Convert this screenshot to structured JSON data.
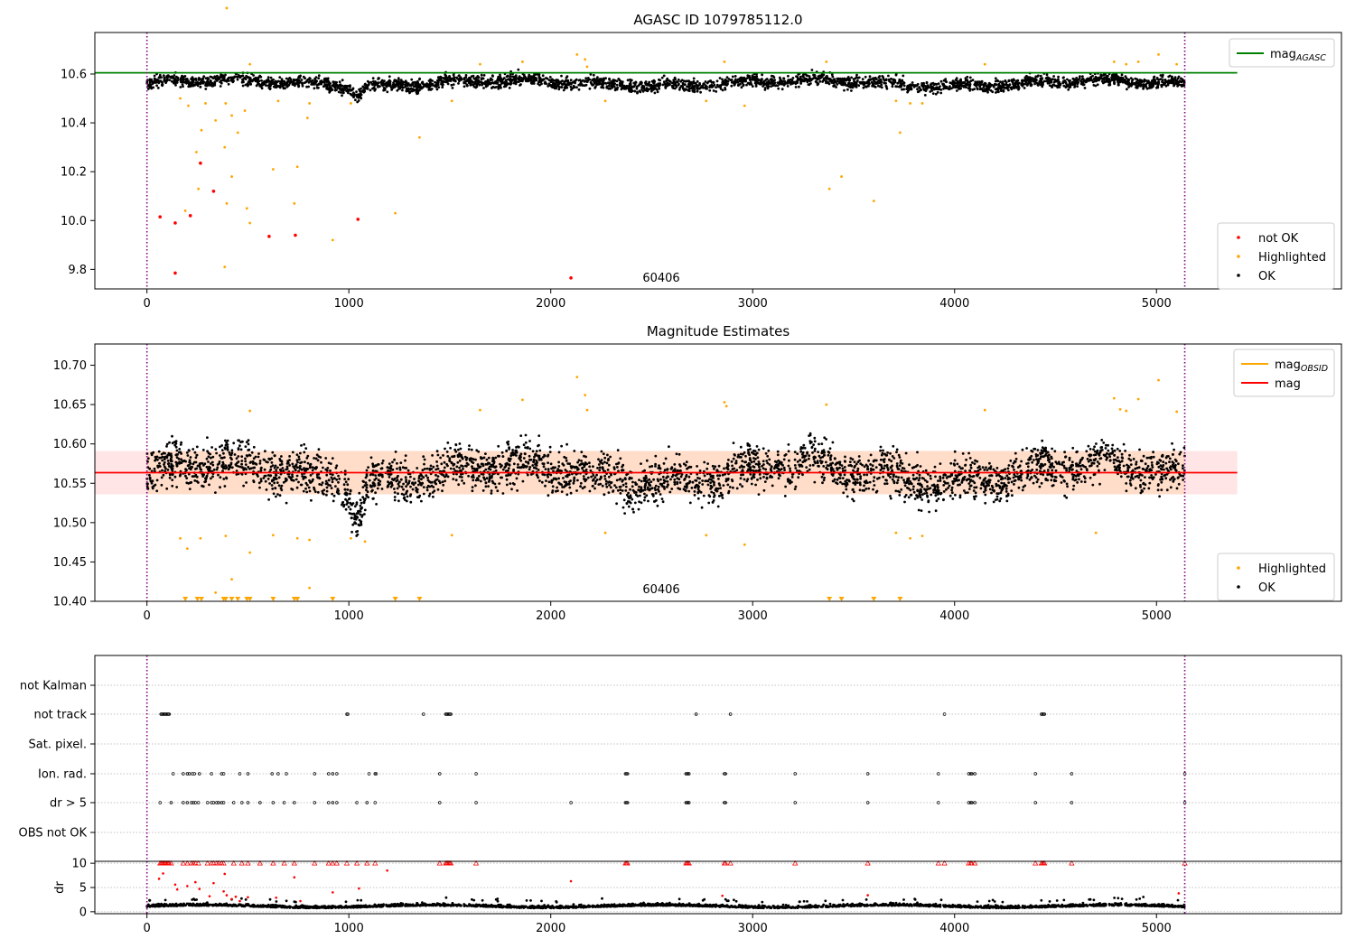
{
  "chart_data": [
    {
      "type": "scatter",
      "title": "AGASC ID 1079785112.0",
      "xlim": [
        -258,
        5916
      ],
      "ylim": [
        9.72,
        10.77
      ],
      "x_ticks": [
        0,
        1000,
        2000,
        3000,
        4000,
        5000
      ],
      "y_ticks": [
        9.8,
        10.0,
        10.2,
        10.4,
        10.6
      ],
      "y_tick_labels": [
        "9.8",
        "10.0",
        "10.2",
        "10.4",
        "10.6"
      ],
      "grid": false,
      "legend_position": "top-right",
      "legend": [
        {
          "label": "mag",
          "sub": "AGASC",
          "color": "#008000",
          "kind": "line"
        }
      ],
      "legend2_position": "bottom-right",
      "legend2": [
        {
          "label": "not OK",
          "color": "#ff0000",
          "kind": "dot"
        },
        {
          "label": "Highlighted",
          "color": "#ffa500",
          "kind": "dot"
        },
        {
          "label": "OK",
          "color": "#000000",
          "kind": "dot"
        }
      ],
      "annotation": {
        "text": "60406",
        "x": 2570,
        "y": 9.755
      },
      "vlines": [
        0,
        5140
      ],
      "hline": {
        "y": 10.605,
        "x_end": 5400,
        "color": "#008000"
      },
      "ok_band": {
        "x_range": [
          0,
          5140
        ],
        "center": 10.563,
        "half_width": 0.045,
        "dip_x": 1040,
        "dip_depth": 0.04
      },
      "series": [
        {
          "name": "not OK",
          "color": "#ff0000",
          "points": [
            [
              65,
              10.015
            ],
            [
              140,
              9.99
            ],
            [
              140,
              9.785
            ],
            [
              215,
              10.02
            ],
            [
              265,
              10.235
            ],
            [
              330,
              10.12
            ],
            [
              605,
              9.935
            ],
            [
              735,
              9.94
            ],
            [
              1045,
              10.005
            ],
            [
              2100,
              9.765
            ]
          ]
        },
        {
          "name": "Highlighted",
          "color": "#ffa500",
          "points": [
            [
              165,
              10.5
            ],
            [
              190,
              10.04
            ],
            [
              205,
              10.47
            ],
            [
              245,
              10.28
            ],
            [
              255,
              10.13
            ],
            [
              270,
              10.37
            ],
            [
              290,
              10.48
            ],
            [
              340,
              10.41
            ],
            [
              385,
              10.3
            ],
            [
              390,
              10.48
            ],
            [
              395,
              10.07
            ],
            [
              395,
              10.87
            ],
            [
              385,
              9.81
            ],
            [
              420,
              10.18
            ],
            [
              420,
              10.43
            ],
            [
              450,
              10.36
            ],
            [
              485,
              10.45
            ],
            [
              495,
              10.05
            ],
            [
              510,
              9.99
            ],
            [
              510,
              10.64
            ],
            [
              625,
              10.21
            ],
            [
              650,
              10.49
            ],
            [
              730,
              10.07
            ],
            [
              745,
              10.22
            ],
            [
              795,
              10.42
            ],
            [
              805,
              10.48
            ],
            [
              920,
              9.92
            ],
            [
              1010,
              10.48
            ],
            [
              1230,
              10.03
            ],
            [
              1350,
              10.34
            ],
            [
              1510,
              10.49
            ],
            [
              1650,
              10.64
            ],
            [
              1860,
              10.65
            ],
            [
              2130,
              10.68
            ],
            [
              2170,
              10.66
            ],
            [
              2180,
              10.63
            ],
            [
              2270,
              10.49
            ],
            [
              2770,
              10.49
            ],
            [
              2860,
              10.65
            ],
            [
              2960,
              10.47
            ],
            [
              3365,
              10.65
            ],
            [
              3380,
              10.13
            ],
            [
              3440,
              10.18
            ],
            [
              3600,
              10.08
            ],
            [
              3710,
              10.49
            ],
            [
              3730,
              10.36
            ],
            [
              3780,
              10.48
            ],
            [
              3840,
              10.48
            ],
            [
              4150,
              10.64
            ],
            [
              4790,
              10.65
            ],
            [
              4850,
              10.64
            ],
            [
              4910,
              10.65
            ],
            [
              5010,
              10.68
            ],
            [
              5100,
              10.64
            ]
          ]
        }
      ]
    },
    {
      "type": "scatter",
      "title": "Magnitude Estimates",
      "xlim": [
        -258,
        5916
      ],
      "ylim": [
        10.4,
        10.727
      ],
      "x_ticks": [
        0,
        1000,
        2000,
        3000,
        4000,
        5000
      ],
      "y_ticks": [
        10.4,
        10.45,
        10.5,
        10.55,
        10.6,
        10.65,
        10.7
      ],
      "y_tick_labels": [
        "10.40",
        "10.45",
        "10.50",
        "10.55",
        "10.60",
        "10.65",
        "10.70"
      ],
      "grid": false,
      "legend_position": "top-right",
      "legend": [
        {
          "label": "mag",
          "sub": "OBSID",
          "color": "#ffa500",
          "kind": "line"
        },
        {
          "label": "mag",
          "sub": "",
          "color": "#ff0000",
          "kind": "line"
        }
      ],
      "legend2_position": "bottom-right",
      "legend2": [
        {
          "label": "Highlighted",
          "color": "#ffa500",
          "kind": "dot"
        },
        {
          "label": "OK",
          "color": "#000000",
          "kind": "dot"
        }
      ],
      "annotation": {
        "text": "60406",
        "x": 2570,
        "y": 10.41
      },
      "vlines": [
        0,
        5140
      ],
      "hline": {
        "y": 10.5635,
        "x_end": 5400,
        "color": "#ff0000"
      },
      "band": {
        "y_min": 10.536,
        "y_max": 10.591,
        "x_range": [
          -258,
          5400
        ]
      },
      "ok_band": {
        "x_range": [
          0,
          5140
        ],
        "center": 10.563,
        "half_width": 0.05,
        "dip_x": 1040,
        "dip_depth": 0.045
      },
      "series": [
        {
          "name": "Highlighted",
          "color": "#ffa500",
          "points": [
            [
              165,
              10.48
            ],
            [
              200,
              10.467
            ],
            [
              265,
              10.48
            ],
            [
              340,
              10.411
            ],
            [
              390,
              10.483
            ],
            [
              420,
              10.428
            ],
            [
              510,
              10.462
            ],
            [
              510,
              10.642
            ],
            [
              625,
              10.484
            ],
            [
              745,
              10.48
            ],
            [
              805,
              10.417
            ],
            [
              805,
              10.478
            ],
            [
              1010,
              10.48
            ],
            [
              1080,
              10.476
            ],
            [
              1510,
              10.484
            ],
            [
              1650,
              10.643
            ],
            [
              1860,
              10.656
            ],
            [
              2130,
              10.685
            ],
            [
              2170,
              10.662
            ],
            [
              2180,
              10.643
            ],
            [
              2270,
              10.487
            ],
            [
              2770,
              10.484
            ],
            [
              2860,
              10.653
            ],
            [
              2870,
              10.648
            ],
            [
              2960,
              10.472
            ],
            [
              3365,
              10.65
            ],
            [
              3710,
              10.487
            ],
            [
              3780,
              10.48
            ],
            [
              3840,
              10.483
            ],
            [
              4150,
              10.643
            ],
            [
              4700,
              10.487
            ],
            [
              4790,
              10.658
            ],
            [
              4820,
              10.644
            ],
            [
              4850,
              10.642
            ],
            [
              4910,
              10.657
            ],
            [
              5010,
              10.681
            ],
            [
              5100,
              10.641
            ]
          ]
        },
        {
          "name": "Highlighted (below range)",
          "color": "#ffa500",
          "points": [
            [
              190,
              10.4
            ],
            [
              250,
              10.4
            ],
            [
              270,
              10.4
            ],
            [
              380,
              10.4
            ],
            [
              390,
              10.4
            ],
            [
              420,
              10.4
            ],
            [
              450,
              10.4
            ],
            [
              495,
              10.4
            ],
            [
              510,
              10.4
            ],
            [
              625,
              10.4
            ],
            [
              730,
              10.4
            ],
            [
              745,
              10.4
            ],
            [
              920,
              10.4
            ],
            [
              1230,
              10.4
            ],
            [
              1350,
              10.4
            ],
            [
              3380,
              10.4
            ],
            [
              3440,
              10.4
            ],
            [
              3600,
              10.4
            ],
            [
              3730,
              10.4
            ]
          ]
        }
      ]
    },
    {
      "type": "scatter",
      "title": "",
      "xlim": [
        -258,
        5916
      ],
      "x_ticks": [
        0,
        1000,
        2000,
        3000,
        4000,
        5000
      ],
      "flag_categories": [
        "not Kalman",
        "not track",
        "Sat. pixel.",
        "Ion. rad.",
        "dr > 5",
        "OBS not OK"
      ],
      "flag_points": {
        "not Kalman": [],
        "not track": [
          70,
          75,
          80,
          85,
          90,
          95,
          100,
          105,
          110,
          990,
          995,
          1370,
          1480,
          1485,
          1490,
          1495,
          1500,
          1505,
          2720,
          2890,
          3950,
          4430,
          4435,
          4440,
          4445
        ],
        "Sat. pixel.": [],
        "Ion. rad.": [
          130,
          180,
          200,
          210,
          225,
          235,
          260,
          320,
          370,
          380,
          460,
          500,
          620,
          650,
          690,
          830,
          900,
          920,
          940,
          1100,
          1130,
          1135,
          1450,
          1630,
          2370,
          2375,
          2380,
          2670,
          2675,
          2680,
          2685,
          2860,
          2865,
          3210,
          3570,
          3920,
          4070,
          4080,
          4085,
          4100,
          4400,
          4580,
          5140
        ],
        "dr > 5": [
          65,
          120,
          180,
          200,
          220,
          230,
          240,
          255,
          300,
          320,
          330,
          345,
          355,
          370,
          380,
          430,
          470,
          500,
          560,
          625,
          680,
          730,
          830,
          900,
          920,
          940,
          1040,
          1090,
          1130,
          1450,
          1630,
          2100,
          2370,
          2375,
          2380,
          2670,
          2675,
          2680,
          2685,
          2860,
          2865,
          3210,
          3570,
          3920,
          4070,
          4080,
          4085,
          4100,
          4400,
          4580,
          5140
        ],
        "OBS not OK": []
      },
      "dr_panel": {
        "ylabel": "dr",
        "ylim": [
          -0.4,
          10.4
        ],
        "y_ticks": [
          0,
          5,
          10
        ],
        "y_tick_labels": [
          "0",
          "5",
          "10"
        ],
        "capped_x": [
          65,
          70,
          75,
          80,
          85,
          90,
          95,
          100,
          105,
          110,
          120,
          180,
          200,
          220,
          230,
          240,
          255,
          300,
          320,
          330,
          345,
          355,
          370,
          380,
          430,
          470,
          500,
          560,
          625,
          680,
          730,
          830,
          900,
          920,
          940,
          990,
          1040,
          1090,
          1130,
          1450,
          1480,
          1485,
          1490,
          1495,
          1500,
          1505,
          1630,
          2370,
          2375,
          2380,
          2670,
          2675,
          2680,
          2685,
          2860,
          2865,
          2890,
          3210,
          3570,
          3920,
          3950,
          4070,
          4080,
          4085,
          4100,
          4400,
          4430,
          4435,
          4440,
          4445,
          4580,
          5140
        ],
        "red_points": [
          [
            60,
            6.8
          ],
          [
            80,
            7.9
          ],
          [
            140,
            5.6
          ],
          [
            150,
            4.6
          ],
          [
            200,
            5.3
          ],
          [
            240,
            6.1
          ],
          [
            260,
            4.7
          ],
          [
            310,
            3.2
          ],
          [
            330,
            5.9
          ],
          [
            380,
            4.2
          ],
          [
            385,
            7.8
          ],
          [
            395,
            3.4
          ],
          [
            420,
            2.6
          ],
          [
            440,
            3.1
          ],
          [
            460,
            2.2
          ],
          [
            500,
            3.0
          ],
          [
            640,
            2.9
          ],
          [
            730,
            7.1
          ],
          [
            760,
            2.2
          ],
          [
            920,
            4.0
          ],
          [
            1050,
            4.8
          ],
          [
            1190,
            8.5
          ],
          [
            2100,
            6.3
          ],
          [
            2850,
            3.3
          ],
          [
            3570,
            3.4
          ],
          [
            5110,
            3.8
          ]
        ]
      }
    }
  ]
}
